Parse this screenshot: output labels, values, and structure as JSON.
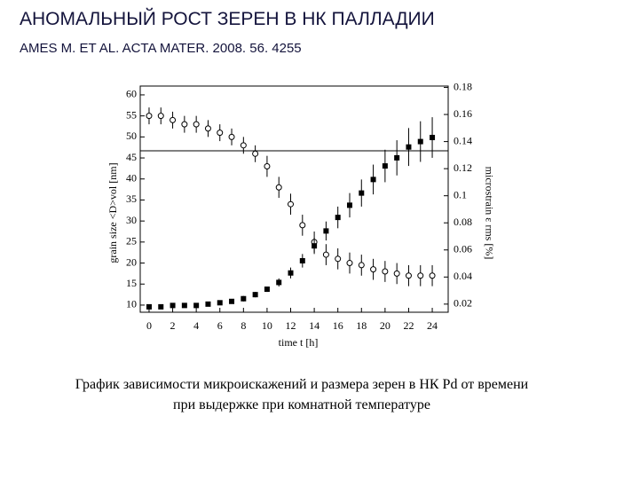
{
  "chart_data": {
    "type": "scatter",
    "title": "АНОМАЛЬНЫЙ РОСТ ЗЕРЕН В НК ПАЛЛАДИИ",
    "subtitle": "AMES M. ET AL. ACTA MATER. 2008. 56. 4255",
    "caption": "График зависимости микроискажений и размера зерен в НК Pd от времени при выдержке при комнатной температуре",
    "xlabel": "time t [h]",
    "ylabel": "grain size <D>vol [nm]",
    "y2label": "microstrain ε rms [%]",
    "xlim": [
      -0.75,
      25.35
    ],
    "ylim": [
      8.3,
      62.1
    ],
    "y2lim": [
      0.014,
      0.181
    ],
    "xticks": [
      0,
      2,
      4,
      6,
      8,
      10,
      12,
      14,
      16,
      18,
      20,
      22,
      24
    ],
    "yticks": [
      10,
      15,
      20,
      25,
      30,
      35,
      40,
      45,
      50,
      55,
      60
    ],
    "y2ticks": [
      0.02,
      0.04,
      0.06,
      0.08,
      0.1,
      0.12,
      0.14,
      0.16,
      0.18
    ],
    "reference_line": 46.7,
    "x": [
      0,
      1,
      2,
      3,
      4,
      5,
      6,
      7,
      8,
      9,
      10,
      11,
      12,
      13,
      14,
      15,
      16,
      17,
      18,
      19,
      20,
      21,
      22,
      23,
      24
    ],
    "series": [
      {
        "color": "#000000",
        "marker": "circle-open",
        "axis": "y",
        "values": [
          55,
          55,
          54,
          53,
          53,
          52,
          51,
          50,
          48,
          46,
          43,
          38,
          34,
          29,
          25,
          22,
          21,
          20,
          19.5,
          18.5,
          18,
          17.5,
          17,
          17,
          17
        ],
        "errors": [
          2,
          2,
          2,
          2,
          2,
          2,
          2,
          2,
          2,
          2,
          2.5,
          2.5,
          2.5,
          2.5,
          2.5,
          2.5,
          2.5,
          2.5,
          2.5,
          2.5,
          2.5,
          2.5,
          2.5,
          2.5,
          2.5
        ]
      },
      {
        "color": "#000000",
        "marker": "square",
        "axis": "y2",
        "values": [
          0.018,
          0.018,
          0.019,
          0.019,
          0.019,
          0.02,
          0.021,
          0.022,
          0.024,
          0.027,
          0.031,
          0.036,
          0.043,
          0.052,
          0.063,
          0.074,
          0.084,
          0.093,
          0.102,
          0.112,
          0.122,
          0.128,
          0.136,
          0.14,
          0.143
        ],
        "errors": [
          0.001,
          0.001,
          0.001,
          0.001,
          0.001,
          0.001,
          0.001,
          0.001,
          0.002,
          0.002,
          0.002,
          0.003,
          0.004,
          0.005,
          0.006,
          0.007,
          0.008,
          0.009,
          0.01,
          0.011,
          0.012,
          0.013,
          0.014,
          0.015,
          0.015
        ]
      }
    ]
  }
}
